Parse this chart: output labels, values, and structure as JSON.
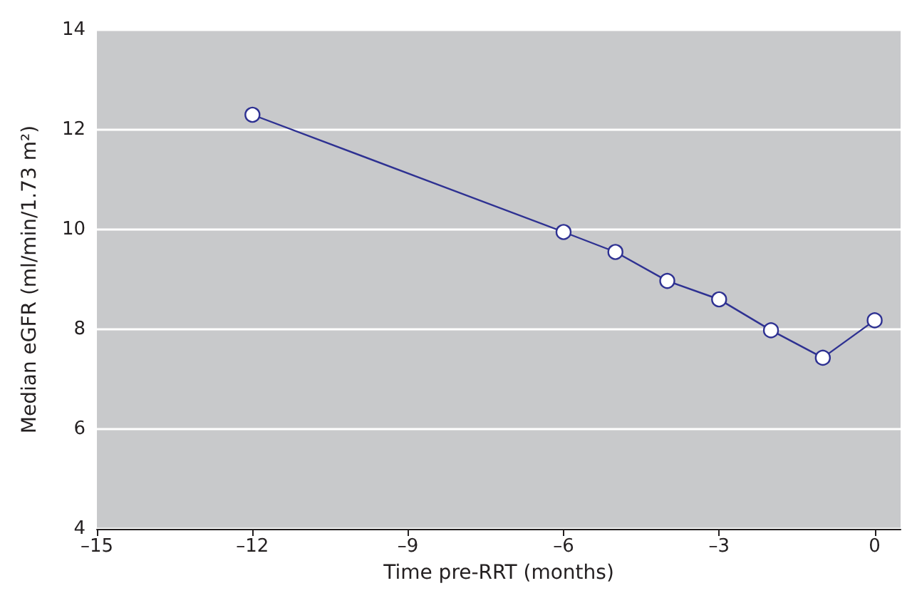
{
  "chart_data": {
    "type": "line",
    "xlabel": "Time pre-RRT (months)",
    "ylabel": "Median eGFR (ml/min/1.73 m²)",
    "x": [
      -12,
      -6,
      -5,
      -4,
      -3,
      -2,
      -1,
      0
    ],
    "series": [
      {
        "color": "#2e3192",
        "values": [
          12.3,
          9.95,
          9.55,
          8.97,
          8.6,
          7.98,
          7.43,
          8.18
        ]
      }
    ],
    "xlim": [
      -15,
      0.5
    ],
    "xticks": [
      {
        "value": -15,
        "label": "–15"
      },
      {
        "value": -12,
        "label": "–12"
      },
      {
        "value": -9,
        "label": "–9"
      },
      {
        "value": -6,
        "label": "–6"
      },
      {
        "value": -3,
        "label": "–3"
      },
      0
    ],
    "ylim": [
      4,
      14
    ],
    "yticks": [
      4,
      6,
      8,
      10,
      12,
      14
    ],
    "grid": "y",
    "marker": "circle",
    "line_style": "solid"
  }
}
